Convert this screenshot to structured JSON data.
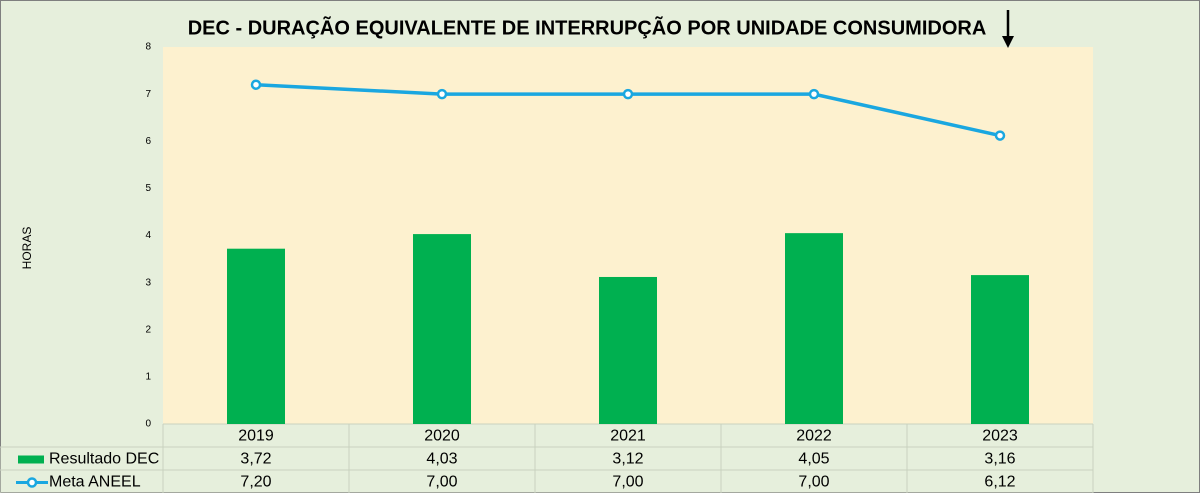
{
  "chart_data": {
    "type": "bar",
    "title": "DEC - DURAÇÃO EQUIVALENTE DE INTERRUPÇÃO POR UNIDADE CONSUMIDORA",
    "y_label": "HORAS",
    "categories": [
      "2019",
      "2020",
      "2021",
      "2022",
      "2023"
    ],
    "series": [
      {
        "name": "Resultado DEC",
        "type": "bar",
        "color": "#00b050",
        "values": [
          3.72,
          4.03,
          3.12,
          4.05,
          3.16
        ],
        "value_labels": [
          "3,72",
          "4,03",
          "3,12",
          "4,05",
          "3,16"
        ]
      },
      {
        "name": "Meta ANEEL",
        "type": "line",
        "color": "#1aa7e0",
        "values": [
          7.2,
          7.0,
          7.0,
          7.0,
          6.12
        ],
        "value_labels": [
          "7,20",
          "7,00",
          "7,00",
          "7,00",
          "6,12"
        ]
      }
    ],
    "ylim": [
      0,
      8
    ],
    "yticks": [
      0,
      1,
      2,
      3,
      4,
      5,
      6,
      7,
      8
    ],
    "grid": false
  }
}
